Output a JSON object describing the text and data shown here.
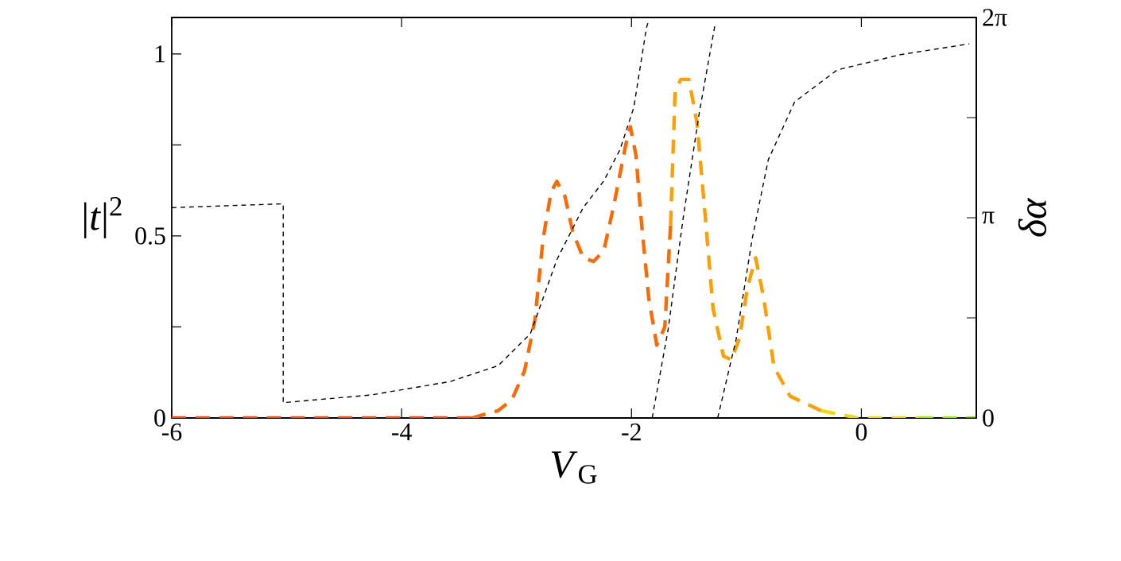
{
  "chart_data": {
    "type": "line",
    "xlabel": "*V*$_{G}$",
    "ylabel": "|*t*|$^{2}$",
    "y2label": "*δα*",
    "xlim": [
      -6,
      1
    ],
    "xticks": [
      -6,
      -4,
      -2,
      0
    ],
    "ylim": [
      0,
      1.1
    ],
    "yticks": [
      0,
      {
        "value": 0.25,
        "label": null
      },
      0.5,
      {
        "value": 0.75,
        "label": null
      },
      1
    ],
    "y2lim": [
      0,
      6.2832
    ],
    "y2ticks": [
      0,
      {
        "value": 1.5708,
        "label": null
      },
      {
        "value": 3.1416,
        "label": "π"
      },
      {
        "value": 4.7124,
        "label": null
      },
      {
        "value": 6.2832,
        "label": "2π"
      }
    ],
    "marker": "none",
    "series": [
      {
        "color": "#ff4a00",
        "line_style": "dashed",
        "x": [
          -6,
          -3.39
        ],
        "values": [
          0,
          0
        ]
      },
      {
        "color": "#ff6a00",
        "line_style": "dashed",
        "x": [
          -3.39,
          -3.16,
          -3.04,
          -2.93,
          -2.84,
          -2.77,
          -2.7,
          -2.65,
          -2.58,
          -2.51,
          -2.42,
          -2.33,
          -2.24,
          -2.15,
          -2.05,
          -2.01,
          -1.96,
          -1.92,
          -1.85,
          -1.78,
          -1.71,
          -1.66
        ],
        "values": [
          0,
          0.02,
          0.05,
          0.13,
          0.27,
          0.49,
          0.62,
          0.65,
          0.61,
          0.51,
          0.44,
          0.43,
          0.46,
          0.59,
          0.75,
          0.8,
          0.72,
          0.56,
          0.33,
          0.2,
          0.25,
          0.53
        ]
      },
      {
        "color": "#ffa000",
        "line_style": "dashed",
        "x": [
          -1.66,
          -1.62,
          -1.57,
          -1.5,
          -1.43,
          -1.36,
          -1.29,
          -1.2,
          -1.13,
          -1.06,
          -0.99,
          -0.92,
          -0.85,
          -0.76,
          -0.62,
          -0.35
        ],
        "values": [
          0.53,
          0.9,
          0.93,
          0.93,
          0.81,
          0.56,
          0.3,
          0.17,
          0.16,
          0.22,
          0.36,
          0.44,
          0.33,
          0.14,
          0.06,
          0.02
        ]
      },
      {
        "color": "#f0d800",
        "line_style": "dashed",
        "x": [
          -0.35,
          -0.03,
          0.5
        ],
        "values": [
          0.02,
          0,
          0
        ]
      },
      {
        "color": "#99ee00",
        "line_style": "dashed",
        "x": [
          0.5,
          1
        ],
        "values": [
          0,
          0
        ]
      },
      {
        "color": "#000000",
        "line_style": "dashed",
        "axis": "y2",
        "x": [
          -6,
          -5.03,
          -5.03,
          -4.27,
          -3.58,
          -3.16,
          -2.88,
          -2.65,
          -2.42,
          -2.24,
          -2.1,
          -1.98,
          -1.87,
          -1.85,
          -1.84,
          -1.82,
          -1.68,
          -1.55,
          -1.41,
          -1.27,
          -1.26,
          -1.25,
          -1.09,
          -0.95,
          -0.81,
          -0.58,
          -0.21,
          0.34,
          0.94
        ],
        "values": [
          3.3,
          3.36,
          0.24,
          0.36,
          0.57,
          0.82,
          1.32,
          2.48,
          3.3,
          3.72,
          4.21,
          4.87,
          6.12,
          6.24,
          null,
          0,
          1.4,
          3.14,
          4.79,
          6.2,
          null,
          0,
          1.23,
          2.81,
          4.05,
          4.96,
          5.46,
          5.7,
          5.87
        ]
      }
    ]
  }
}
